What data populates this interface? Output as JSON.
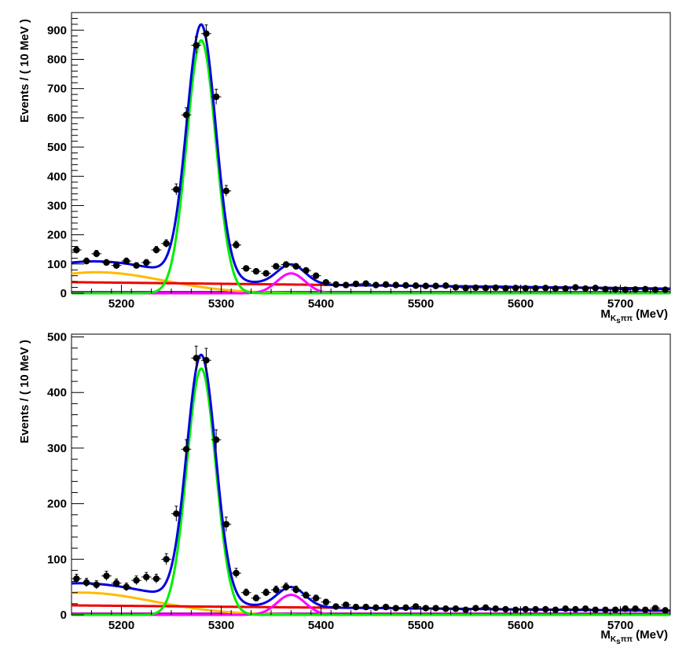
{
  "chart_data": [
    {
      "type": "scatter",
      "xlabel": {
        "main": "M",
        "sub": "K",
        "subsub": "s",
        "tail": "ππ",
        "unit": " (MeV)"
      },
      "ylabel": "Events / ( 10 MeV )",
      "xlim": [
        5150,
        5750
      ],
      "ylim": [
        0,
        960
      ],
      "xticks": [
        5200,
        5300,
        5400,
        5500,
        5600,
        5700
      ],
      "yticks": [
        0,
        100,
        200,
        300,
        400,
        500,
        600,
        700,
        800,
        900
      ],
      "fit": {
        "signal_mean": 5280,
        "signal_sigma": 14.5,
        "signal_amp": 865,
        "peak2_mean": 5370,
        "peak2_sigma": 14,
        "peak2_amp": 68,
        "partial_amp": 72,
        "partial_mean": 5175,
        "partial_sigma": 40,
        "partial_width_right": 42,
        "comb_start": 38,
        "comb_slope": 0.037
      },
      "colors": {
        "total": "#0000dd",
        "signal": "#00ee00",
        "peak2": "#ff00ff",
        "partial": "#ffbb00",
        "comb": "#ee0000",
        "flat": "#aa00aa"
      },
      "points": {
        "x": [
          5155,
          5165,
          5175,
          5185,
          5195,
          5205,
          5215,
          5225,
          5235,
          5245,
          5255,
          5265,
          5275,
          5285,
          5295,
          5305,
          5315,
          5325,
          5335,
          5345,
          5355,
          5365,
          5375,
          5385,
          5395,
          5405,
          5415,
          5425,
          5435,
          5445,
          5455,
          5465,
          5475,
          5485,
          5495,
          5505,
          5515,
          5525,
          5535,
          5545,
          5555,
          5565,
          5575,
          5585,
          5595,
          5605,
          5615,
          5625,
          5635,
          5645,
          5655,
          5665,
          5675,
          5685,
          5695,
          5705,
          5715,
          5725,
          5735,
          5745
        ],
        "y": [
          148,
          110,
          135,
          105,
          95,
          110,
          95,
          105,
          148,
          170,
          355,
          610,
          848,
          888,
          672,
          350,
          165,
          85,
          75,
          68,
          92,
          98,
          92,
          78,
          60,
          37,
          30,
          28,
          32,
          33,
          28,
          30,
          28,
          27,
          26,
          25,
          25,
          26,
          20,
          18,
          19,
          18,
          19,
          17,
          18,
          17,
          17,
          18,
          16,
          16,
          20,
          16,
          18,
          14,
          13,
          12,
          13,
          14,
          12,
          12
        ]
      }
    },
    {
      "type": "scatter",
      "xlabel": {
        "main": "M",
        "sub": "K",
        "subsub": "s",
        "tail": "ππ",
        "unit": " (MeV)"
      },
      "ylabel": "Events / ( 10 MeV )",
      "xlim": [
        5150,
        5750
      ],
      "ylim": [
        0,
        505
      ],
      "xticks": [
        5200,
        5300,
        5400,
        5500,
        5600,
        5700
      ],
      "yticks": [
        0,
        100,
        200,
        300,
        400,
        500
      ],
      "fit": {
        "signal_mean": 5280,
        "signal_sigma": 14.5,
        "signal_amp": 443,
        "peak2_mean": 5370,
        "peak2_sigma": 14,
        "peak2_amp": 36,
        "partial_amp": 40,
        "partial_mean": 5160,
        "partial_sigma": 40,
        "partial_width_right": 45,
        "comb_start": 17,
        "comb_slope": 0.016
      },
      "colors": {
        "total": "#0000dd",
        "signal": "#00ee00",
        "peak2": "#ff00ff",
        "partial": "#ffbb00",
        "comb": "#ee0000",
        "flat": "#aa00aa"
      },
      "points": {
        "x": [
          5155,
          5165,
          5175,
          5185,
          5195,
          5205,
          5215,
          5225,
          5235,
          5245,
          5255,
          5265,
          5275,
          5285,
          5295,
          5305,
          5315,
          5325,
          5335,
          5345,
          5355,
          5365,
          5375,
          5385,
          5395,
          5405,
          5415,
          5425,
          5435,
          5445,
          5455,
          5465,
          5475,
          5485,
          5495,
          5505,
          5515,
          5525,
          5535,
          5545,
          5555,
          5565,
          5575,
          5585,
          5595,
          5605,
          5615,
          5625,
          5635,
          5645,
          5655,
          5665,
          5675,
          5685,
          5695,
          5705,
          5715,
          5725,
          5735,
          5745
        ],
        "y": [
          65,
          58,
          54,
          70,
          57,
          50,
          62,
          68,
          65,
          100,
          182,
          298,
          462,
          458,
          315,
          163,
          75,
          40,
          30,
          40,
          45,
          50,
          45,
          35,
          30,
          23,
          15,
          18,
          14,
          14,
          13,
          14,
          12,
          13,
          15,
          12,
          12,
          11,
          11,
          9,
          12,
          13,
          11,
          10,
          9,
          10,
          10,
          10,
          9,
          11,
          10,
          11,
          9,
          9,
          9,
          11,
          11,
          9,
          12,
          8
        ]
      }
    }
  ]
}
